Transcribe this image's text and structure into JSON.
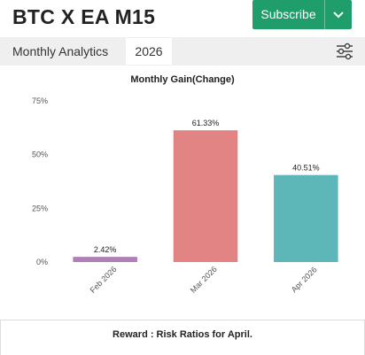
{
  "header": {
    "title": "BTC X EA M15",
    "subscribe_label": "Subscribe",
    "subscribe_color": "#1f9d6b"
  },
  "tabs": {
    "analytics_label": "Monthly Analytics",
    "year_label": "2026",
    "filter_icon": "sliders-icon"
  },
  "chart_data": {
    "type": "bar",
    "title": "Monthly Gain(Change)",
    "categories": [
      "Feb 2026",
      "Mar 2026",
      "Apr 2026"
    ],
    "values": [
      2.42,
      61.33,
      40.51
    ],
    "value_labels": [
      "2.42%",
      "61.33%",
      "40.51%"
    ],
    "colors": [
      "#b07fb8",
      "#e38484",
      "#5db6b8"
    ],
    "yticks": [
      "0%",
      "25%",
      "50%",
      "75%"
    ],
    "ylim": [
      0,
      75
    ],
    "grid": false,
    "xlabel": "",
    "ylabel": ""
  },
  "footer": {
    "title": "Reward : Risk Ratios for April."
  }
}
